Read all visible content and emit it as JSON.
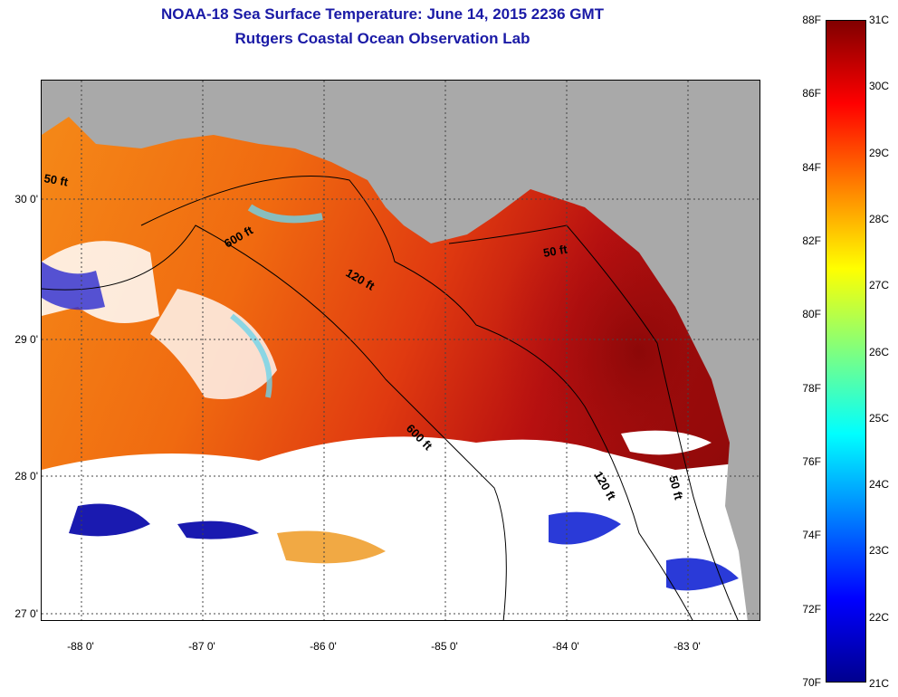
{
  "title": {
    "line1": "NOAA-18 Sea Surface Temperature:  June 14, 2015 2236 GMT",
    "line2": "Rutgers Coastal Ocean Observation Lab"
  },
  "map": {
    "latitude_labels": [
      "30 0'",
      "29 0'",
      "28 0'",
      "27 0'"
    ],
    "longitude_labels": [
      "-88 0'",
      "-87 0'",
      "-86 0'",
      "-85 0'",
      "-84 0'",
      "-83 0'"
    ],
    "contour_labels": [
      "50 ft",
      "600 ft",
      "120 ft",
      "50 ft",
      "600 ft",
      "120 ft",
      "50 ft"
    ],
    "colors": {
      "land": "#a9a9a9",
      "cloud": "#ffffff",
      "warm_shelf": "#b81010",
      "open_gulf": "#f05a10"
    }
  },
  "colorbar": {
    "fahrenheit_labels": [
      "88F",
      "86F",
      "84F",
      "82F",
      "80F",
      "78F",
      "76F",
      "74F",
      "72F",
      "70F"
    ],
    "celsius_labels": [
      "31C",
      "30C",
      "29C",
      "28C",
      "27C",
      "26C",
      "25C",
      "24C",
      "23C",
      "22C",
      "21C"
    ],
    "range_f": [
      70,
      88
    ],
    "range_c": [
      21,
      31
    ]
  }
}
